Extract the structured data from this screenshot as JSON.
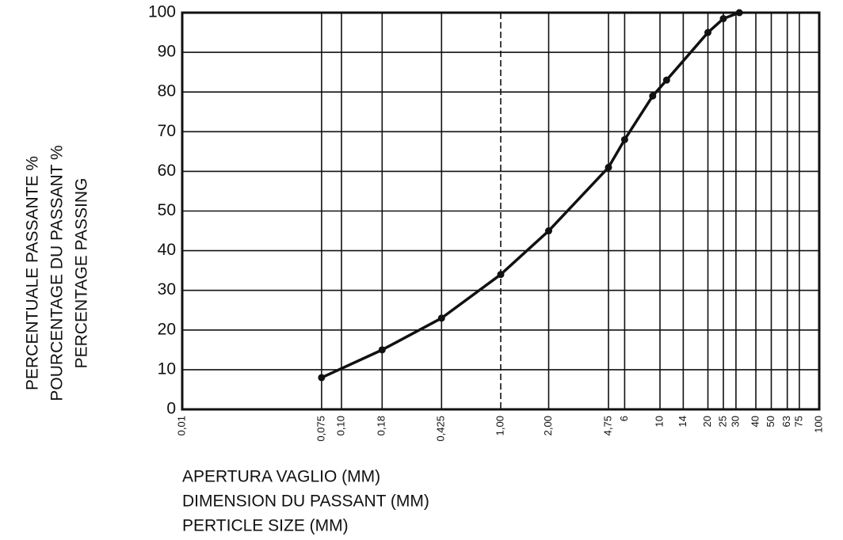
{
  "chart_data": {
    "type": "line",
    "x_label": [
      "APERTURA VAGLIO (MM)",
      "DIMENSION DU PASSANT (MM)",
      "PERTICLE SIZE (MM)"
    ],
    "y_label": [
      "PERCENTUALE PASSANTE %",
      "POURCENTAGE DU PASSANT %",
      "PERCENTAGE PASSING"
    ],
    "x": [
      0.075,
      0.18,
      0.425,
      1,
      2,
      4.75,
      6,
      9,
      11,
      20,
      25,
      31.5
    ],
    "values": [
      8,
      15,
      23,
      34,
      45,
      61,
      68,
      79,
      83,
      95,
      98.5,
      100
    ],
    "color": "#111111",
    "xscale": "log",
    "xlim": [
      0.01,
      100
    ],
    "xticks": [
      {
        "value": 0.01,
        "label": "0,01"
      },
      {
        "value": 0.075,
        "label": "0,075"
      },
      {
        "value": 0.1,
        "label": "0,10"
      },
      {
        "value": 0.18,
        "label": "0,18"
      },
      {
        "value": 0.425,
        "label": "0,425"
      },
      {
        "value": 1,
        "label": "1,00"
      },
      {
        "value": 2,
        "label": "2,00"
      },
      {
        "value": 4.75,
        "label": "4,75"
      },
      6,
      10,
      14,
      20,
      25,
      30,
      40,
      50,
      63,
      75,
      100
    ],
    "ylim": [
      0,
      100
    ],
    "yticks": [
      0,
      10,
      20,
      30,
      40,
      50,
      60,
      70,
      80,
      90,
      100
    ],
    "grid": true,
    "vline": 1,
    "vline_style": "dashed"
  }
}
